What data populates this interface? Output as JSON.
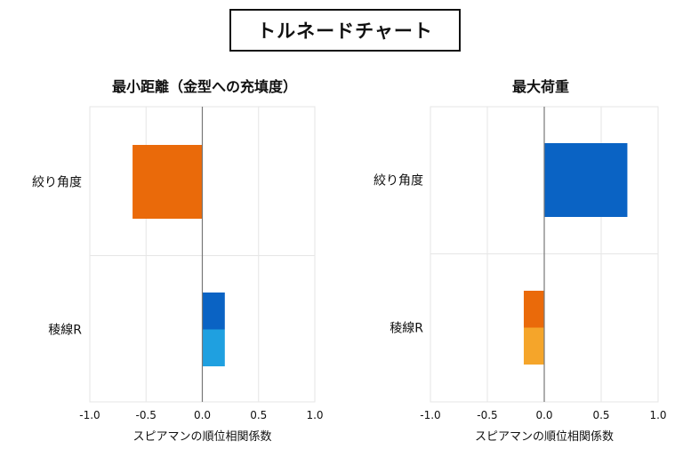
{
  "title": "トルネードチャート",
  "chart_data": [
    {
      "type": "bar",
      "orientation": "horizontal",
      "title": "最小距離（金型への充填度）",
      "categories": [
        "絞り角度",
        "稜線R"
      ],
      "series": [
        {
          "name": "series-1",
          "values": [
            -0.62,
            0.2
          ],
          "colors": [
            "#ea6a0a",
            "#0a63c4"
          ]
        },
        {
          "name": "series-2",
          "values": [
            null,
            0.2
          ],
          "colors": [
            null,
            "#1fa0e0"
          ]
        }
      ],
      "xlabel": "スピアマンの順位相関係数",
      "xlim": [
        -1.0,
        1.0
      ],
      "ticks": [
        "-1.0",
        "-0.5",
        "0.0",
        "0.5",
        "1.0"
      ],
      "grid": true
    },
    {
      "type": "bar",
      "orientation": "horizontal",
      "title": "最大荷重",
      "categories": [
        "絞り角度",
        "稜線R"
      ],
      "series": [
        {
          "name": "series-1",
          "values": [
            0.73,
            -0.18
          ],
          "colors": [
            "#0a63c4",
            "#ea6a0a"
          ]
        },
        {
          "name": "series-2",
          "values": [
            null,
            -0.18
          ],
          "colors": [
            null,
            "#f5a52a"
          ]
        }
      ],
      "xlabel": "スピアマンの順位相関係数",
      "xlim": [
        -1.0,
        1.0
      ],
      "ticks": [
        "-1.0",
        "-0.5",
        "0.0",
        "0.5",
        "1.0"
      ],
      "grid": true
    }
  ]
}
